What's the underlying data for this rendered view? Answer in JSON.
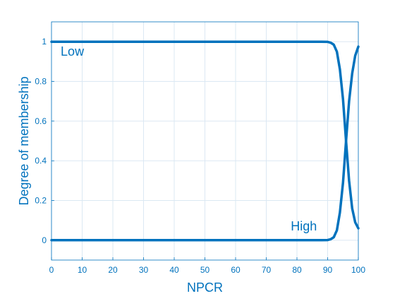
{
  "chart_data": {
    "type": "line",
    "title": "",
    "xlabel": "NPCR",
    "ylabel": "Degree of membership",
    "xlim": [
      0,
      100
    ],
    "ylim": [
      -0.1,
      1.1
    ],
    "xticks": [
      "0",
      "10",
      "20",
      "30",
      "40",
      "50",
      "60",
      "70",
      "80",
      "90",
      "100"
    ],
    "yticks": [
      "0",
      "0.2",
      "0.4",
      "0.6",
      "0.8",
      "1"
    ],
    "grid": true,
    "line_color": "#0072bd",
    "series": [
      {
        "name": "Low",
        "x": [
          0,
          10,
          20,
          30,
          40,
          50,
          60,
          70,
          80,
          88,
          90,
          91,
          92,
          93,
          94,
          95,
          96,
          97,
          98,
          99,
          100
        ],
        "y": [
          1,
          1,
          1,
          1,
          1,
          1,
          1,
          1,
          1,
          1,
          0.999,
          0.995,
          0.985,
          0.95,
          0.86,
          0.71,
          0.5,
          0.3,
          0.16,
          0.09,
          0.06
        ]
      },
      {
        "name": "High",
        "x": [
          0,
          10,
          20,
          30,
          40,
          50,
          60,
          70,
          80,
          88,
          90,
          91,
          92,
          93,
          94,
          95,
          96,
          97,
          98,
          99,
          100
        ],
        "y": [
          0,
          0,
          0,
          0,
          0,
          0,
          0,
          0,
          0,
          0,
          0.001,
          0.005,
          0.015,
          0.05,
          0.14,
          0.29,
          0.5,
          0.7,
          0.84,
          0.93,
          0.975
        ]
      }
    ],
    "annotations": [
      {
        "text": "Low",
        "x": 3,
        "y": 0.93
      },
      {
        "text": "High",
        "x": 78,
        "y": 0.05
      }
    ]
  }
}
